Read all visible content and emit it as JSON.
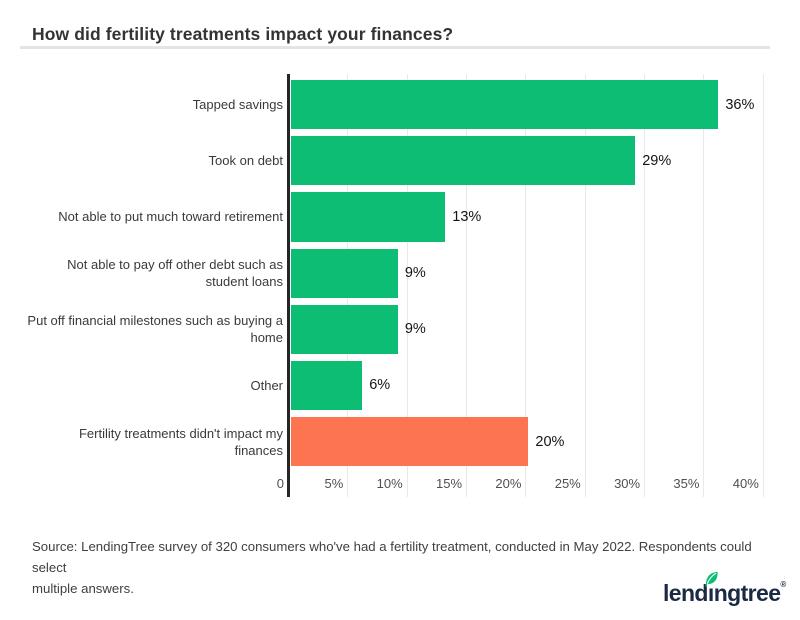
{
  "page": {
    "title": "How did fertility treatments impact your finances?",
    "source_text": "Source: LendingTree survey of 320 consumers who've had a fertility treatment, conducted in May 2022. Respondents could select\nmultiple answers.",
    "logo": {
      "text_pre": "lend",
      "text_i": "ı",
      "text_post": "ngtree",
      "mark": "®",
      "brand_navy": "#1b2a44",
      "leaf_green": "#0dbd74"
    }
  },
  "colors": {
    "bar_green": "#0dbd74",
    "bar_orange": "#fd7450",
    "gridline": "#e9e9e9",
    "axis_line": "#262626",
    "title_text": "#333333",
    "label_text": "#3a3a3a",
    "tick_text": "#4f4f4f",
    "value_text": "#141414",
    "divider": "#e4e4e4"
  },
  "chart_data": {
    "type": "bar",
    "orientation": "horizontal",
    "title": "How did fertility treatments impact your finances?",
    "categories": [
      "Tapped savings",
      "Took on debt",
      "Not able to put much toward retirement",
      "Not able to pay off other debt such as student loans",
      "Put off financial milestones such as buying a home",
      "Other",
      "Fertility treatments didn't impact my finances"
    ],
    "category_lines": [
      [
        "Tapped savings"
      ],
      [
        "Took on debt"
      ],
      [
        "Not able to put much toward retirement"
      ],
      [
        "Not able to pay off other debt such as",
        "student loans"
      ],
      [
        "Put off financial milestones such as buying a",
        "home"
      ],
      [
        "Other"
      ],
      [
        "Fertility treatments didn't impact my",
        "finances"
      ]
    ],
    "values": [
      36,
      29,
      13,
      9,
      9,
      6,
      20
    ],
    "value_labels": [
      "36%",
      "29%",
      "13%",
      "9%",
      "9%",
      "6%",
      "20%"
    ],
    "bar_colors": [
      "#0dbd74",
      "#0dbd74",
      "#0dbd74",
      "#0dbd74",
      "#0dbd74",
      "#0dbd74",
      "#fd7450"
    ],
    "xlabel": "",
    "ylabel": "",
    "xlim": [
      0,
      40
    ],
    "x_tick_values": [
      0,
      5,
      10,
      15,
      20,
      25,
      30,
      35,
      40
    ],
    "x_tick_labels": [
      "0",
      "5%",
      "10%",
      "15%",
      "20%",
      "25%",
      "30%",
      "35%",
      "40%"
    ],
    "grid": true,
    "legend": false
  }
}
